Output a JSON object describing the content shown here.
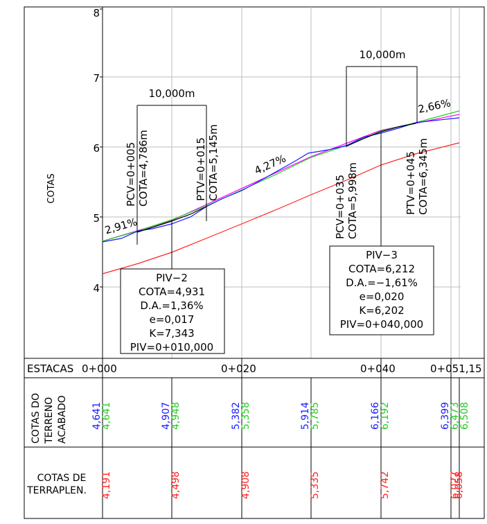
{
  "axis": {
    "title": "COTAS",
    "ticks": [
      "8",
      "7",
      "6",
      "5",
      "4"
    ]
  },
  "dimensions": [
    "10,000m",
    "10,000m"
  ],
  "grades": [
    "2,91%",
    "4,27%",
    "2,66%"
  ],
  "stations": {
    "pcv1": [
      "PCV=0+005",
      "COTA=4,786m"
    ],
    "ptv1": [
      "PTV=0+015",
      "COTA=5,145m"
    ],
    "pcv2": [
      "PCV=0+035",
      "COTA=5,998m"
    ],
    "ptv2": [
      "PTV=0+045",
      "COTA=6,345m"
    ]
  },
  "piv2": [
    "PIV−2",
    "COTA=4,931",
    "D.A.=1,36%",
    "e=0,017",
    "K=7,343",
    "PIV=0+010,000"
  ],
  "piv3": [
    "PIV−3",
    "COTA=6,212",
    "D.A.=−1,61%",
    "e=0,020",
    "K=6,202",
    "PIV=0+040,000"
  ],
  "table": {
    "estacas_label": "ESTACAS",
    "estacas": [
      "0+000",
      "0+020",
      "0+040",
      "0+051,15"
    ],
    "cotas_terreno_label": [
      "COTAS DO",
      "TERRENO",
      "ACABADO"
    ],
    "terreno_blue": [
      "4,641",
      "4,907",
      "5,382",
      "5,914",
      "6,166",
      "6,399"
    ],
    "terreno_green": [
      "4,641",
      "4,948",
      "5,358",
      "5,785",
      "6,192",
      "6,473",
      "6,508"
    ],
    "cotas_terraplen_label": [
      "COTAS DE",
      "TERRAPLEN."
    ],
    "terraplen_red": [
      "4,191",
      "4,498",
      "4,908",
      "5,335",
      "5,742",
      "6,027",
      "6,058"
    ]
  },
  "colors": {
    "blue": "#1a1aff",
    "green": "#22cc22",
    "red": "#ff2020",
    "magenta": "#ff00ff",
    "black": "#000000",
    "grid": "#bdbdbd"
  }
}
